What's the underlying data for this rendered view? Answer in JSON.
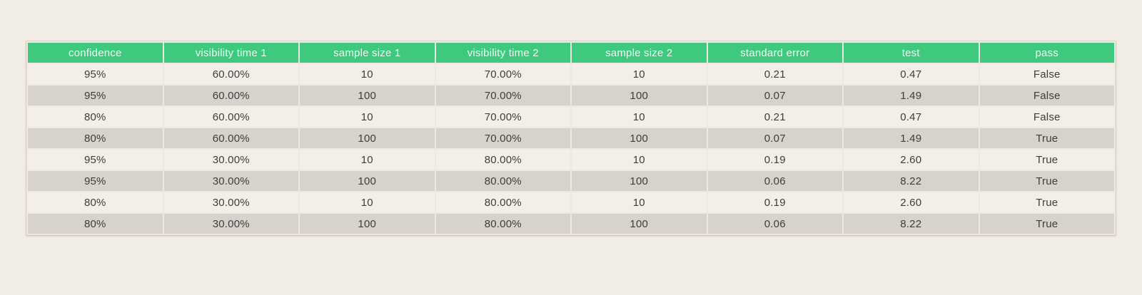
{
  "colors": {
    "page_background": "#f2ede4",
    "header_background": "#3fc97e",
    "header_text": "#ecf9f1",
    "row_light": "#f3efe8",
    "row_dark": "#d7d3cc",
    "cell_text": "#3d3d3d",
    "divider": "#ece9e1"
  },
  "chart_data": {
    "type": "table",
    "columns": [
      "confidence",
      "visibility time 1",
      "sample size 1",
      "visibility time 2",
      "sample size 2",
      "standard error",
      "test",
      "pass"
    ],
    "rows": [
      [
        "95%",
        "60.00%",
        "10",
        "70.00%",
        "10",
        "0.21",
        "0.47",
        "False"
      ],
      [
        "95%",
        "60.00%",
        "100",
        "70.00%",
        "100",
        "0.07",
        "1.49",
        "False"
      ],
      [
        "80%",
        "60.00%",
        "10",
        "70.00%",
        "10",
        "0.21",
        "0.47",
        "False"
      ],
      [
        "80%",
        "60.00%",
        "100",
        "70.00%",
        "100",
        "0.07",
        "1.49",
        "True"
      ],
      [
        "95%",
        "30.00%",
        "10",
        "80.00%",
        "10",
        "0.19",
        "2.60",
        "True"
      ],
      [
        "95%",
        "30.00%",
        "100",
        "80.00%",
        "100",
        "0.06",
        "8.22",
        "True"
      ],
      [
        "80%",
        "30.00%",
        "10",
        "80.00%",
        "10",
        "0.19",
        "2.60",
        "True"
      ],
      [
        "80%",
        "30.00%",
        "100",
        "80.00%",
        "100",
        "0.06",
        "8.22",
        "True"
      ]
    ]
  }
}
